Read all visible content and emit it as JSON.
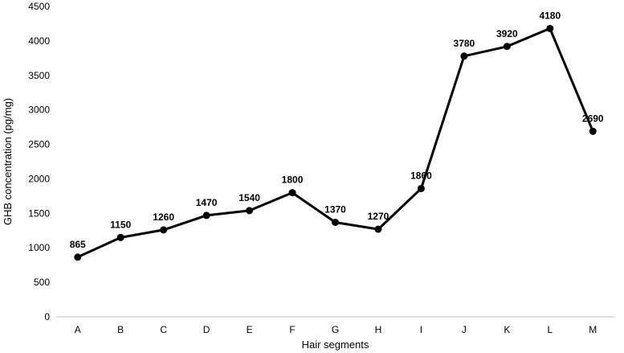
{
  "chart_data": {
    "type": "line",
    "title": "",
    "xlabel": "Hair segments",
    "ylabel": "GHB concentration (pg/mg)",
    "categories": [
      "A",
      "B",
      "C",
      "D",
      "E",
      "F",
      "G",
      "H",
      "I",
      "J",
      "K",
      "L",
      "M"
    ],
    "series": [
      {
        "values": [
          865,
          1150,
          1260,
          1470,
          1540,
          1800,
          1370,
          1270,
          1860,
          3780,
          3920,
          4180,
          2690
        ],
        "color": "#000000"
      }
    ],
    "data_labels": [
      "865",
      "1150",
      "1260",
      "1470",
      "1540",
      "1800",
      "1370",
      "1270",
      "1860",
      "3780",
      "3920",
      "4180",
      "2690"
    ],
    "ylim": [
      0,
      4500
    ],
    "yticks": [
      0,
      500,
      1000,
      1500,
      2000,
      2500,
      3000,
      3500,
      4000,
      4500
    ],
    "grid": false,
    "legend": "none"
  }
}
